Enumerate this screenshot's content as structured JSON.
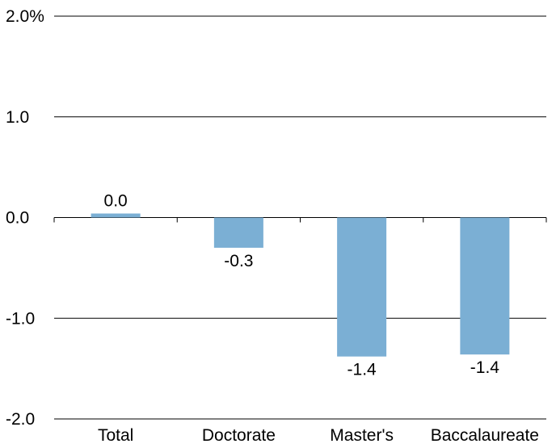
{
  "chart_data": {
    "type": "bar",
    "categories": [
      "Total",
      "Doctorate",
      "Master's",
      "Baccalaureate"
    ],
    "values": [
      0.04,
      -0.3,
      -1.38,
      -1.36
    ],
    "value_labels": [
      "0.0",
      "-0.3",
      "-1.4",
      "-1.4"
    ],
    "ylim": [
      -2.0,
      2.0
    ],
    "yticks": [
      2.0,
      1.0,
      0.0,
      -1.0,
      -2.0
    ],
    "ytick_labels": [
      "2.0%",
      "1.0",
      "0.0",
      "-1.0",
      "-2.0"
    ],
    "title": "",
    "xlabel": "",
    "ylabel": "",
    "grid": true,
    "colors": {
      "bar": "#7BAFD4",
      "grid": "#000000",
      "text": "#000000"
    }
  }
}
